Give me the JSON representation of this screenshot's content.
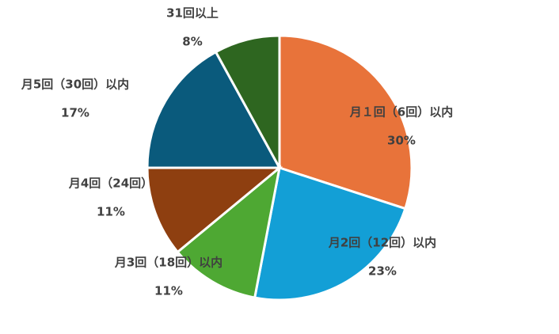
{
  "chart_data": {
    "type": "pie",
    "categories": [
      "月１回（6回）以内",
      "月2回（12回）以内",
      "月3回（18回）以内",
      "月4回（24回）",
      "月5回（30回）以内",
      "31回以上"
    ],
    "values": [
      30,
      23,
      11,
      11,
      17,
      8
    ],
    "value_labels": [
      "30%",
      "23%",
      "11%",
      "11%",
      "17%",
      "8%"
    ],
    "colors": [
      "#e8733a",
      "#139fd6",
      "#4ea833",
      "#8e3f10",
      "#0a5a7c",
      "#2e6620"
    ]
  }
}
